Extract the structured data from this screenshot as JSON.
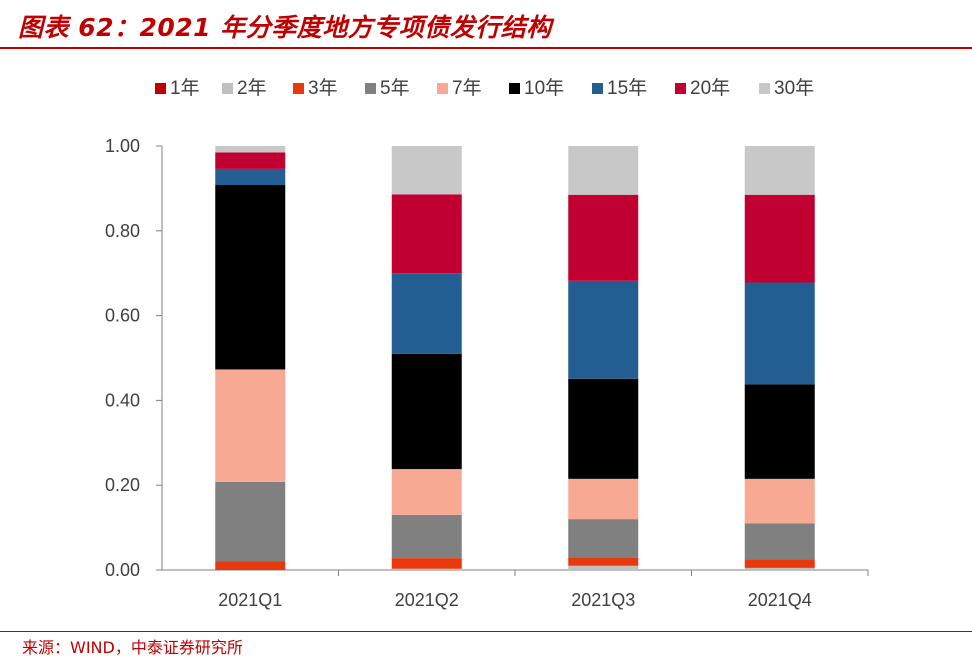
{
  "title": "图表 62：2021 年分季度地方专项债发行结构",
  "source": "来源：WIND，中泰证券研究所",
  "chart_data": {
    "type": "bar",
    "stacked": true,
    "categories": [
      "2021Q1",
      "2021Q2",
      "2021Q3",
      "2021Q4"
    ],
    "ylim": [
      0,
      1
    ],
    "yticks": [
      "0.00",
      "0.20",
      "0.40",
      "0.60",
      "0.80",
      "1.00"
    ],
    "legend_position": "top",
    "series": [
      {
        "name": "1年",
        "color": "#c00000",
        "values": [
          0.0,
          0.0,
          0.0,
          0.0
        ]
      },
      {
        "name": "2年",
        "color": "#bfbfbf",
        "values": [
          0.0,
          0.003,
          0.01,
          0.005
        ]
      },
      {
        "name": "3年",
        "color": "#e8380d",
        "values": [
          0.02,
          0.025,
          0.02,
          0.02
        ]
      },
      {
        "name": "5年",
        "color": "#808080",
        "values": [
          0.188,
          0.102,
          0.09,
          0.085
        ]
      },
      {
        "name": "7年",
        "color": "#f8a994",
        "values": [
          0.265,
          0.108,
          0.095,
          0.105
        ]
      },
      {
        "name": "10年",
        "color": "#000000",
        "values": [
          0.435,
          0.272,
          0.236,
          0.223
        ]
      },
      {
        "name": "15年",
        "color": "#225e91",
        "values": [
          0.038,
          0.19,
          0.231,
          0.24
        ]
      },
      {
        "name": "20年",
        "color": "#c00030",
        "values": [
          0.039,
          0.186,
          0.203,
          0.207
        ]
      },
      {
        "name": "30年",
        "color": "#c8c8c8",
        "values": [
          0.015,
          0.114,
          0.115,
          0.115
        ]
      }
    ]
  }
}
